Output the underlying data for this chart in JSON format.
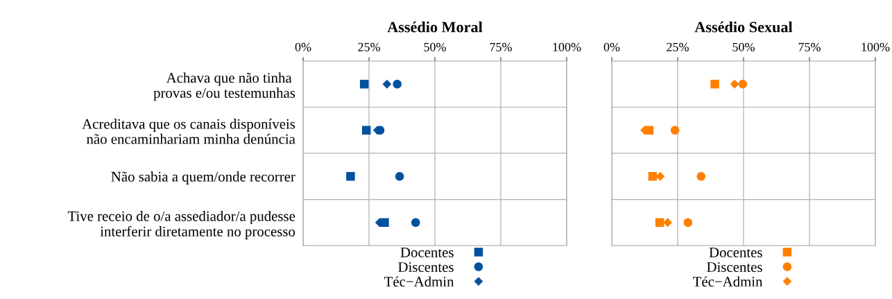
{
  "chart_data": [
    {
      "type": "scatter",
      "title": "Assédio Moral",
      "categories": [
        "Achava que não tinha \nprovas e/ou testemunhas",
        "Acreditava que os canais disponíveis\nnão encaminhariam minha denúncia",
        "Não sabia a quem/onde recorrer",
        "Tive receio de o/a assediador/a pudesse\ninterferir diretamente no processo"
      ],
      "orientation": "horizontal",
      "xlim": [
        0,
        100
      ],
      "xticks": [
        {
          "value": 0,
          "label": "0%"
        },
        {
          "value": 25,
          "label": "25%"
        },
        {
          "value": 50,
          "label": "50%"
        },
        {
          "value": 75,
          "label": "75%"
        },
        {
          "value": 100,
          "label": "100%"
        }
      ],
      "grid": true,
      "legend": "bottom",
      "series": [
        {
          "name": "Docentes",
          "color": "#00519e",
          "marker": "square",
          "values": [
            23.2,
            24.0,
            18.0,
            30.9
          ]
        },
        {
          "name": "Discentes",
          "color": "#00519e",
          "marker": "circle",
          "values": [
            35.7,
            29.2,
            36.6,
            42.7
          ]
        },
        {
          "name": "Téc−Admin",
          "color": "#00519e",
          "marker": "diamond",
          "values": [
            31.8,
            28.2,
            null,
            29.0
          ]
        }
      ]
    },
    {
      "type": "scatter",
      "title": "Assédio Sexual",
      "categories": [
        null,
        null,
        null,
        null
      ],
      "orientation": "horizontal",
      "tick_labels": "x",
      "xlim": [
        0,
        100
      ],
      "xticks": [
        {
          "value": 0,
          "label": "0%"
        },
        {
          "value": 25,
          "label": "25%"
        },
        {
          "value": 50,
          "label": "50%"
        },
        {
          "value": 75,
          "label": "75%"
        },
        {
          "value": 100,
          "label": "100%"
        }
      ],
      "grid": true,
      "legend": "bottom",
      "series": [
        {
          "name": "Docentes",
          "color": "#ff8000",
          "marker": "square",
          "values": [
            39.1,
            14.2,
            15.5,
            18.2
          ]
        },
        {
          "name": "Discentes",
          "color": "#ff8000",
          "marker": "circle",
          "values": [
            49.7,
            24.0,
            33.9,
            28.9
          ]
        },
        {
          "name": "Téc−Admin",
          "color": "#ff8000",
          "marker": "diamond",
          "values": [
            46.6,
            12.5,
            18.4,
            21.2
          ]
        }
      ]
    }
  ]
}
